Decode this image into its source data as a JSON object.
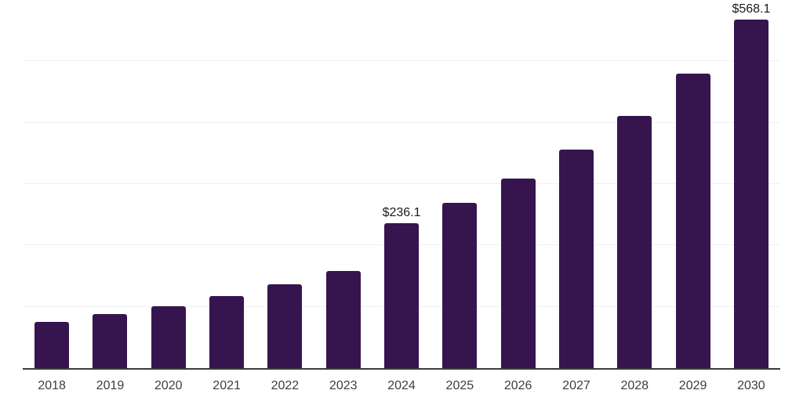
{
  "chart_data": {
    "type": "bar",
    "title": "",
    "xlabel": "",
    "ylabel": "",
    "categories": [
      "2018",
      "2019",
      "2020",
      "2021",
      "2022",
      "2023",
      "2024",
      "2025",
      "2026",
      "2027",
      "2028",
      "2029",
      "2030"
    ],
    "values": [
      75,
      88,
      101,
      117,
      137,
      158,
      236.1,
      269,
      309,
      356,
      411,
      480,
      568.1
    ],
    "data_labels": {
      "2024": "$236.1",
      "2030": "$568.1"
    },
    "ylim": [
      0,
      600
    ],
    "gridline_step": 100,
    "grid": true,
    "y_tick_labels_visible": false,
    "legend": false,
    "colors": {
      "bar": "#36154F",
      "axis_line": "#3C3C3C",
      "tick_label": "#3D3D3D",
      "data_label": "#1A1A1A",
      "gridline": "#EFEFEF",
      "background": "#FFFFFF"
    }
  }
}
